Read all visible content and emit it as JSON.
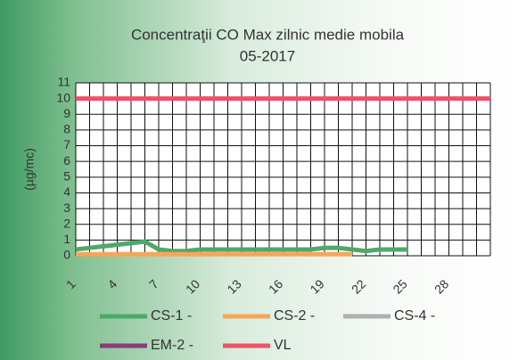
{
  "chart_data": {
    "type": "line",
    "title": "Concentraţii CO Max zilnic medie mobila",
    "subtitle": "05-2017",
    "y_label": "(µg/mc)",
    "categories": [
      "1",
      null,
      null,
      "4",
      null,
      null,
      "7",
      null,
      null,
      "10",
      null,
      null,
      "13",
      null,
      null,
      "16",
      null,
      null,
      "19",
      null,
      null,
      "22",
      null,
      null,
      "25",
      null,
      null,
      "28",
      null,
      null,
      null
    ],
    "ylim": [
      0,
      11
    ],
    "yticks": [
      0,
      1,
      2,
      3,
      4,
      5,
      6,
      7,
      8,
      9,
      10,
      11
    ],
    "grid": true,
    "series": [
      {
        "name": "CS-1 -",
        "color": "#4ea86a",
        "values": [
          0.4,
          0.5,
          0.6,
          0.7,
          0.8,
          0.9,
          0.4,
          0.3,
          0.3,
          0.4,
          0.4,
          0.4,
          0.4,
          0.4,
          0.4,
          0.4,
          0.4,
          0.4,
          0.5,
          0.5,
          0.4,
          0.3,
          0.4,
          0.4,
          0.4,
          null,
          null,
          null,
          null,
          null,
          null
        ]
      },
      {
        "name": "CS-2 -",
        "color": "#f5a65b",
        "values": [
          0.1,
          0.1,
          0.1,
          0.1,
          0.1,
          0.1,
          0.1,
          0.1,
          0.1,
          0.1,
          0.1,
          0.1,
          0.1,
          0.1,
          0.1,
          0.1,
          0.1,
          0.1,
          0.1,
          0.1,
          0.1,
          null,
          null,
          null,
          null,
          null,
          null,
          null,
          null,
          null,
          null
        ]
      },
      {
        "name": "CS-4 -",
        "color": "#b0b0b0",
        "values": [
          null,
          null,
          null,
          null,
          null,
          null,
          null,
          null,
          null,
          null,
          null,
          null,
          null,
          null,
          null,
          null,
          null,
          null,
          null,
          null,
          null,
          null,
          null,
          null,
          null,
          null,
          null,
          null,
          null,
          null,
          null
        ]
      },
      {
        "name": "EM-2 -",
        "color": "#8b3a7a",
        "values": [
          null,
          null,
          null,
          null,
          null,
          null,
          null,
          null,
          null,
          null,
          null,
          null,
          null,
          null,
          null,
          null,
          null,
          null,
          null,
          null,
          null,
          null,
          null,
          null,
          null,
          null,
          null,
          null,
          null,
          null,
          null
        ]
      },
      {
        "name": "VL",
        "color": "#f0506a",
        "values": [
          10,
          10,
          10,
          10,
          10,
          10,
          10,
          10,
          10,
          10,
          10,
          10,
          10,
          10,
          10,
          10,
          10,
          10,
          10,
          10,
          10,
          10,
          10,
          10,
          10,
          10,
          10,
          10,
          10,
          10,
          10
        ]
      }
    ]
  }
}
